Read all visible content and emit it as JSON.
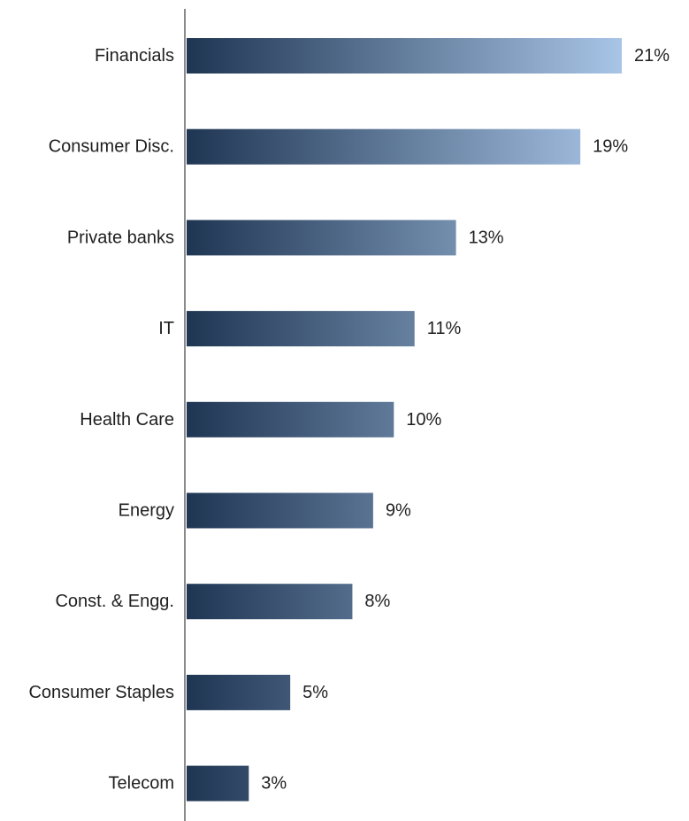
{
  "chart_data": {
    "type": "bar",
    "orientation": "horizontal",
    "categories": [
      "Financials",
      "Consumer Disc.",
      "Private banks",
      "IT",
      "Health Care",
      "Energy",
      "Const. & Engg.",
      "Consumer Staples",
      "Telecom"
    ],
    "values": [
      21,
      19,
      13,
      11,
      10,
      9,
      8,
      5,
      3
    ],
    "value_labels": [
      "21%",
      "19%",
      "13%",
      "11%",
      "10%",
      "9%",
      "8%",
      "5%",
      "3%"
    ],
    "unit": "%",
    "xlim": [
      0,
      21
    ],
    "grid": false,
    "legend": "none",
    "gradient_start": "#1f3653",
    "gradient_end": "#a8c4e6",
    "axis_color": "#8a8a8a"
  }
}
